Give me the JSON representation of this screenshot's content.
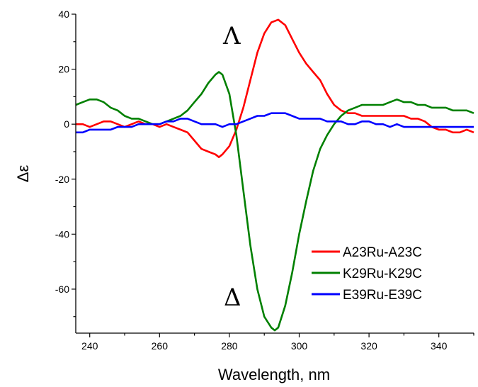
{
  "chart_data": {
    "type": "line",
    "xlabel": "Wavelength, nm",
    "ylabel": "Δε",
    "xlim": [
      236,
      350
    ],
    "ylim": [
      -76,
      40
    ],
    "xticks": [
      240,
      260,
      280,
      300,
      320,
      340
    ],
    "xtick_labels": [
      "240",
      "260",
      "280",
      "300",
      "320",
      "340"
    ],
    "yticks": [
      40,
      20,
      0,
      -20,
      -40,
      -60
    ],
    "ytick_labels": [
      "40",
      "20",
      "0",
      "-20",
      "-40",
      "-60"
    ],
    "grid": false,
    "legend": "bottom-right",
    "annotations": [
      {
        "text": "Λ",
        "x": 280,
        "y": 31
      },
      {
        "text": "Δ",
        "x": 280,
        "y": -64
      }
    ],
    "series": [
      {
        "name": "A23Ru-A23C",
        "color": "#ff0000",
        "points": [
          [
            236,
            0
          ],
          [
            238,
            0
          ],
          [
            240,
            -1
          ],
          [
            242,
            0
          ],
          [
            244,
            1
          ],
          [
            246,
            1
          ],
          [
            248,
            0
          ],
          [
            250,
            -1
          ],
          [
            252,
            0
          ],
          [
            254,
            1
          ],
          [
            256,
            0
          ],
          [
            258,
            0
          ],
          [
            260,
            -1
          ],
          [
            262,
            0
          ],
          [
            264,
            -1
          ],
          [
            266,
            -2
          ],
          [
            268,
            -3
          ],
          [
            270,
            -6
          ],
          [
            272,
            -9
          ],
          [
            274,
            -10
          ],
          [
            276,
            -11
          ],
          [
            277,
            -12
          ],
          [
            278,
            -11
          ],
          [
            280,
            -8
          ],
          [
            282,
            -2
          ],
          [
            284,
            6
          ],
          [
            286,
            16
          ],
          [
            288,
            26
          ],
          [
            290,
            33
          ],
          [
            292,
            37
          ],
          [
            294,
            38
          ],
          [
            296,
            36
          ],
          [
            298,
            31
          ],
          [
            300,
            26
          ],
          [
            302,
            22
          ],
          [
            304,
            19
          ],
          [
            306,
            16
          ],
          [
            308,
            11
          ],
          [
            310,
            7
          ],
          [
            312,
            5
          ],
          [
            314,
            4
          ],
          [
            316,
            4
          ],
          [
            318,
            3
          ],
          [
            320,
            3
          ],
          [
            322,
            3
          ],
          [
            324,
            3
          ],
          [
            326,
            3
          ],
          [
            328,
            3
          ],
          [
            330,
            3
          ],
          [
            332,
            2
          ],
          [
            334,
            2
          ],
          [
            336,
            1
          ],
          [
            338,
            -1
          ],
          [
            340,
            -2
          ],
          [
            342,
            -2
          ],
          [
            344,
            -3
          ],
          [
            346,
            -3
          ],
          [
            348,
            -2
          ],
          [
            350,
            -3
          ]
        ]
      },
      {
        "name": "K29Ru-K29C",
        "color": "#008000",
        "points": [
          [
            236,
            7
          ],
          [
            238,
            8
          ],
          [
            240,
            9
          ],
          [
            242,
            9
          ],
          [
            244,
            8
          ],
          [
            246,
            6
          ],
          [
            248,
            5
          ],
          [
            250,
            3
          ],
          [
            252,
            2
          ],
          [
            254,
            2
          ],
          [
            256,
            1
          ],
          [
            258,
            0
          ],
          [
            260,
            0
          ],
          [
            262,
            1
          ],
          [
            264,
            2
          ],
          [
            266,
            3
          ],
          [
            268,
            5
          ],
          [
            270,
            8
          ],
          [
            272,
            11
          ],
          [
            274,
            15
          ],
          [
            276,
            18
          ],
          [
            277,
            19
          ],
          [
            278,
            18
          ],
          [
            280,
            11
          ],
          [
            282,
            -4
          ],
          [
            284,
            -24
          ],
          [
            286,
            -44
          ],
          [
            288,
            -60
          ],
          [
            290,
            -70
          ],
          [
            292,
            -74
          ],
          [
            293,
            -75
          ],
          [
            294,
            -74
          ],
          [
            296,
            -66
          ],
          [
            298,
            -54
          ],
          [
            300,
            -40
          ],
          [
            302,
            -28
          ],
          [
            304,
            -17
          ],
          [
            306,
            -9
          ],
          [
            308,
            -4
          ],
          [
            310,
            0
          ],
          [
            312,
            3
          ],
          [
            314,
            5
          ],
          [
            316,
            6
          ],
          [
            318,
            7
          ],
          [
            320,
            7
          ],
          [
            322,
            7
          ],
          [
            324,
            7
          ],
          [
            326,
            8
          ],
          [
            328,
            9
          ],
          [
            330,
            8
          ],
          [
            332,
            8
          ],
          [
            334,
            7
          ],
          [
            336,
            7
          ],
          [
            338,
            6
          ],
          [
            340,
            6
          ],
          [
            342,
            6
          ],
          [
            344,
            5
          ],
          [
            346,
            5
          ],
          [
            348,
            5
          ],
          [
            350,
            4
          ]
        ]
      },
      {
        "name": "E39Ru-E39C",
        "color": "#0000ff",
        "points": [
          [
            236,
            -3
          ],
          [
            238,
            -3
          ],
          [
            240,
            -2
          ],
          [
            242,
            -2
          ],
          [
            244,
            -2
          ],
          [
            246,
            -2
          ],
          [
            248,
            -1
          ],
          [
            250,
            -1
          ],
          [
            252,
            -1
          ],
          [
            254,
            0
          ],
          [
            256,
            0
          ],
          [
            258,
            0
          ],
          [
            260,
            0
          ],
          [
            262,
            1
          ],
          [
            264,
            1
          ],
          [
            266,
            2
          ],
          [
            268,
            2
          ],
          [
            270,
            1
          ],
          [
            272,
            0
          ],
          [
            274,
            0
          ],
          [
            276,
            0
          ],
          [
            278,
            -1
          ],
          [
            280,
            0
          ],
          [
            282,
            0
          ],
          [
            284,
            1
          ],
          [
            286,
            2
          ],
          [
            288,
            3
          ],
          [
            290,
            3
          ],
          [
            292,
            4
          ],
          [
            294,
            4
          ],
          [
            296,
            4
          ],
          [
            298,
            3
          ],
          [
            300,
            2
          ],
          [
            302,
            2
          ],
          [
            304,
            2
          ],
          [
            306,
            2
          ],
          [
            308,
            1
          ],
          [
            310,
            1
          ],
          [
            312,
            1
          ],
          [
            314,
            0
          ],
          [
            316,
            0
          ],
          [
            318,
            1
          ],
          [
            320,
            1
          ],
          [
            322,
            0
          ],
          [
            324,
            0
          ],
          [
            326,
            -1
          ],
          [
            328,
            0
          ],
          [
            330,
            -1
          ],
          [
            332,
            -1
          ],
          [
            334,
            -1
          ],
          [
            336,
            -1
          ],
          [
            338,
            -1
          ],
          [
            340,
            -1
          ],
          [
            342,
            -1
          ],
          [
            344,
            -1
          ],
          [
            346,
            -1
          ],
          [
            348,
            -1
          ],
          [
            350,
            -1
          ]
        ]
      }
    ]
  }
}
